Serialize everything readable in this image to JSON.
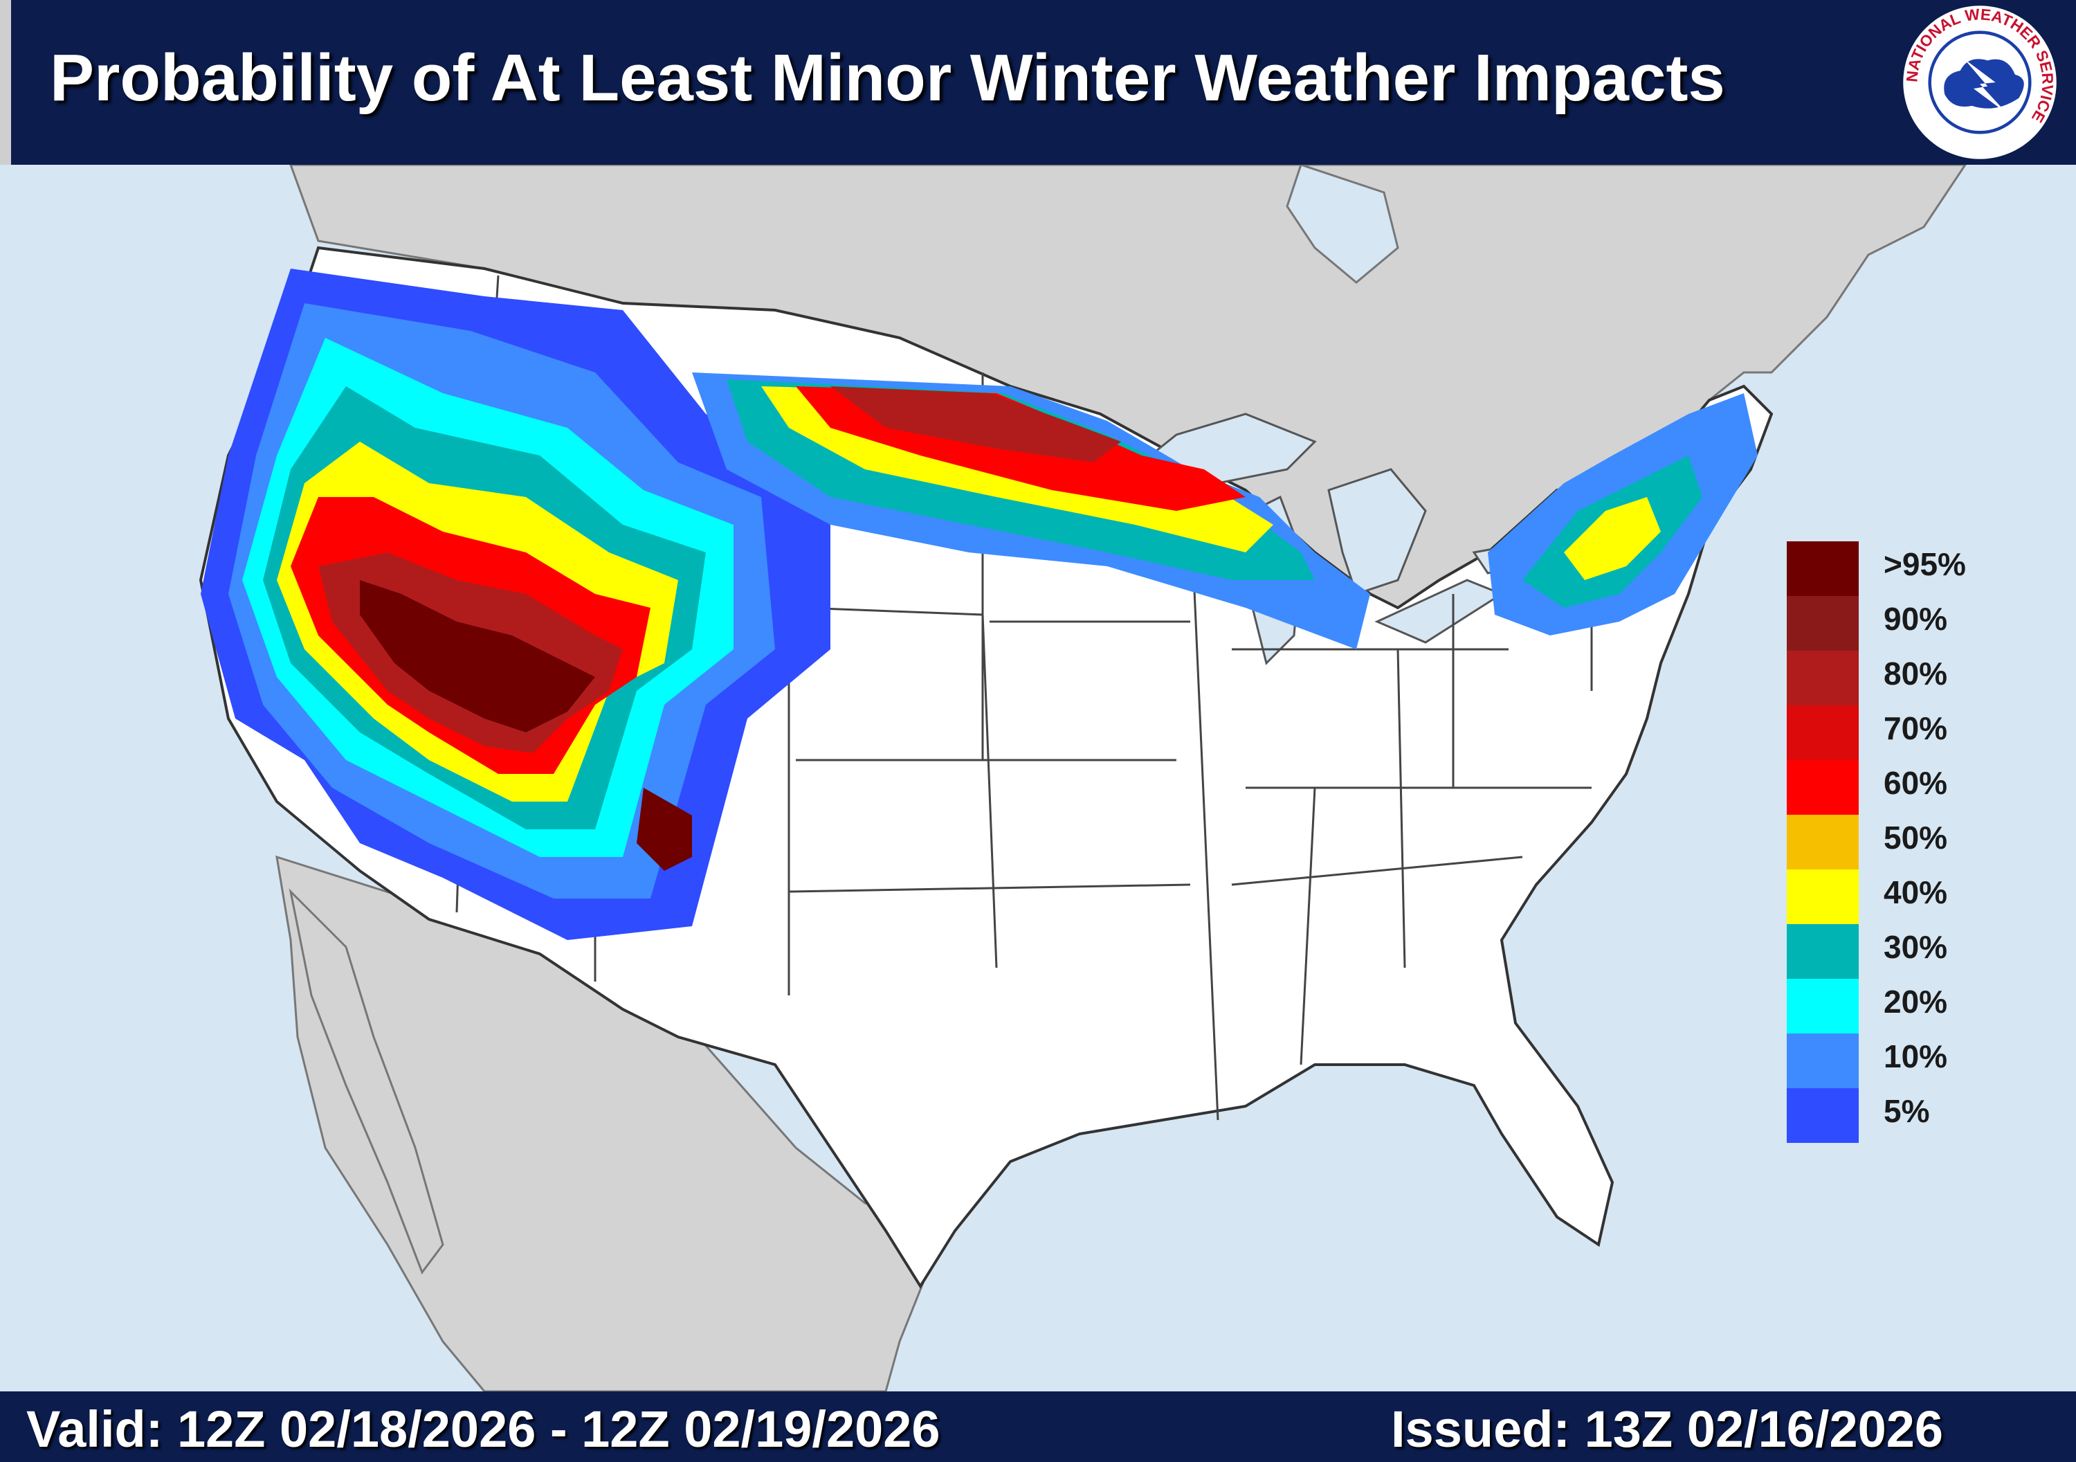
{
  "header": {
    "title": "Probability of At Least Minor Winter Weather Impacts",
    "logo": {
      "icon": "nws-logo-icon",
      "text": "NATIONAL WEATHER SERVICE",
      "colors": {
        "ring": "#ffffff",
        "text": "#c8102e",
        "cloud": "#1b3fa8",
        "lightning": "#ffffff"
      }
    }
  },
  "footer": {
    "valid": "Valid: 12Z 02/18/2026  - 12Z 02/19/2026",
    "issued": "Issued: 13Z 02/16/2026"
  },
  "legend": {
    "items": [
      {
        "label": ">95%",
        "color": "#6e0000"
      },
      {
        "label": "90%",
        "color": "#8a1a1a"
      },
      {
        "label": "80%",
        "color": "#b01c1c"
      },
      {
        "label": "70%",
        "color": "#dc0a0a"
      },
      {
        "label": "60%",
        "color": "#ff0000"
      },
      {
        "label": "50%",
        "color": "#f6c000"
      },
      {
        "label": "40%",
        "color": "#ffff00"
      },
      {
        "label": "30%",
        "color": "#00b4b4"
      },
      {
        "label": "20%",
        "color": "#00ffff"
      },
      {
        "label": "10%",
        "color": "#3d8bff"
      },
      {
        "label": "5%",
        "color": "#2f4cff"
      }
    ]
  },
  "map": {
    "background_colors": {
      "water": "#d6e6f3",
      "foreign_land": "#d3d3d3",
      "us_land": "#ffffff",
      "borders": "#555555"
    }
  }
}
